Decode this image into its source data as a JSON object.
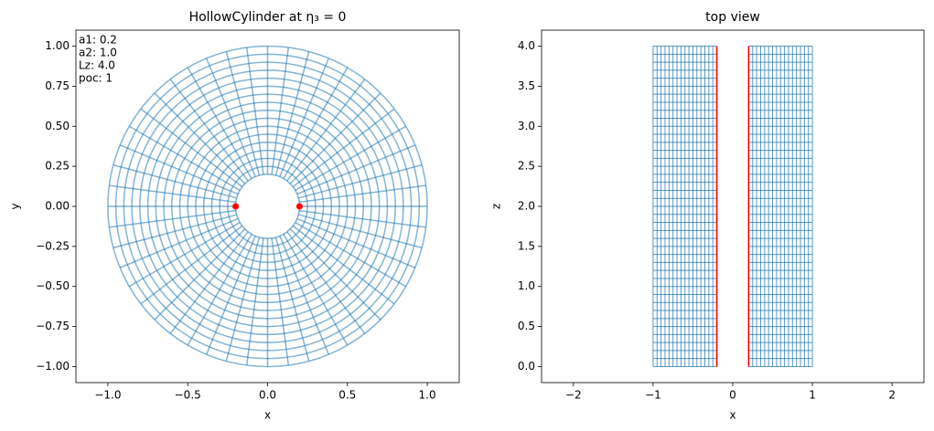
{
  "chart_data": [
    {
      "type": "polar",
      "title": "HollowCylinder at η₃ = 0",
      "x_label": "x",
      "y_label": "y",
      "xlim": [
        -1.2,
        1.2
      ],
      "ylim": [
        -1.1,
        1.1
      ],
      "xticks": [
        {
          "value": -1,
          "label": "−1.0"
        },
        {
          "value": -0.5,
          "label": "−0.5"
        },
        {
          "value": 0,
          "label": "0.0"
        },
        {
          "value": 0.5,
          "label": "0.5"
        },
        {
          "value": 1,
          "label": "1.0"
        }
      ],
      "yticks": [
        {
          "value": -1,
          "label": "−1.00"
        },
        {
          "value": -0.75,
          "label": "−0.75"
        },
        {
          "value": -0.5,
          "label": "−0.50"
        },
        {
          "value": -0.25,
          "label": "−0.25"
        },
        {
          "value": 0,
          "label": "0.00"
        },
        {
          "value": 0.25,
          "label": "0.25"
        },
        {
          "value": 0.5,
          "label": "0.50"
        },
        {
          "value": 0.75,
          "label": "0.75"
        },
        {
          "value": 1,
          "label": "1.00"
        }
      ],
      "annotations": [
        "a1: 0.2",
        "a2: 1.0",
        "Lz: 4.0",
        "poc: 1"
      ],
      "color": "#1f77b4",
      "radii": [
        0.2,
        0.25,
        0.3,
        0.35,
        0.4,
        0.45,
        0.5,
        0.55,
        0.6,
        0.65,
        0.7,
        0.75,
        0.8,
        0.85,
        0.9,
        0.95,
        1.0
      ],
      "angles_deg": [
        0,
        7.5,
        15,
        22.5,
        30,
        37.5,
        45,
        52.5,
        60,
        67.5,
        75,
        82.5,
        90,
        97.5,
        105,
        112.5,
        120,
        127.5,
        135,
        142.5,
        150,
        157.5,
        165,
        172.5,
        180,
        187.5,
        195,
        202.5,
        210,
        217.5,
        225,
        232.5,
        240,
        247.5,
        255,
        262.5,
        270,
        277.5,
        285,
        292.5,
        300,
        307.5,
        315,
        322.5,
        330,
        337.5,
        345,
        352.5
      ],
      "points": {
        "x": [
          -0.2,
          0.2
        ],
        "y": [
          0,
          0
        ],
        "color": "red"
      }
    },
    {
      "type": "mesh",
      "title": "top view",
      "x_label": "x",
      "y_label": "z",
      "xlim": [
        -2.4,
        2.4
      ],
      "ylim": [
        -0.2,
        4.2
      ],
      "xticks": [
        {
          "value": -2,
          "label": "−2"
        },
        {
          "value": -1,
          "label": "−1"
        },
        0,
        1,
        2
      ],
      "yticks": [
        {
          "value": 0,
          "label": "0.0"
        },
        {
          "value": 0.5,
          "label": "0.5"
        },
        {
          "value": 1,
          "label": "1.0"
        },
        {
          "value": 1.5,
          "label": "1.5"
        },
        {
          "value": 2,
          "label": "2.0"
        },
        {
          "value": 2.5,
          "label": "2.5"
        },
        {
          "value": 3,
          "label": "3.0"
        },
        {
          "value": 3.5,
          "label": "3.5"
        },
        {
          "value": 4,
          "label": "4.0"
        }
      ],
      "color": "#1f77b4",
      "blocks": [
        [
          -1,
          -0.2
        ],
        [
          0.2,
          1
        ]
      ],
      "x_lines": [
        -1,
        -0.95,
        -0.9,
        -0.85,
        -0.8,
        -0.75,
        -0.7,
        -0.65,
        -0.6,
        -0.55,
        -0.5,
        -0.45,
        -0.4,
        -0.35,
        -0.3,
        -0.25,
        -0.2,
        0.2,
        0.25,
        0.3,
        0.35,
        0.4,
        0.45,
        0.5,
        0.55,
        0.6,
        0.65,
        0.7,
        0.75,
        0.8,
        0.85,
        0.9,
        0.95,
        1
      ],
      "z_lines": [
        0,
        0.1,
        0.2,
        0.3,
        0.4,
        0.5,
        0.6,
        0.7,
        0.8,
        0.9,
        1,
        1.1,
        1.2,
        1.3,
        1.4,
        1.5,
        1.6,
        1.7,
        1.8,
        1.9,
        2,
        2.1,
        2.2,
        2.3,
        2.4,
        2.5,
        2.6,
        2.7,
        2.8,
        2.9,
        3,
        3.1,
        3.2,
        3.3,
        3.4,
        3.5,
        3.6,
        3.7,
        3.8,
        3.9,
        4
      ],
      "red_lines": {
        "x": [
          -0.2,
          0.2
        ],
        "color": "red"
      }
    }
  ]
}
